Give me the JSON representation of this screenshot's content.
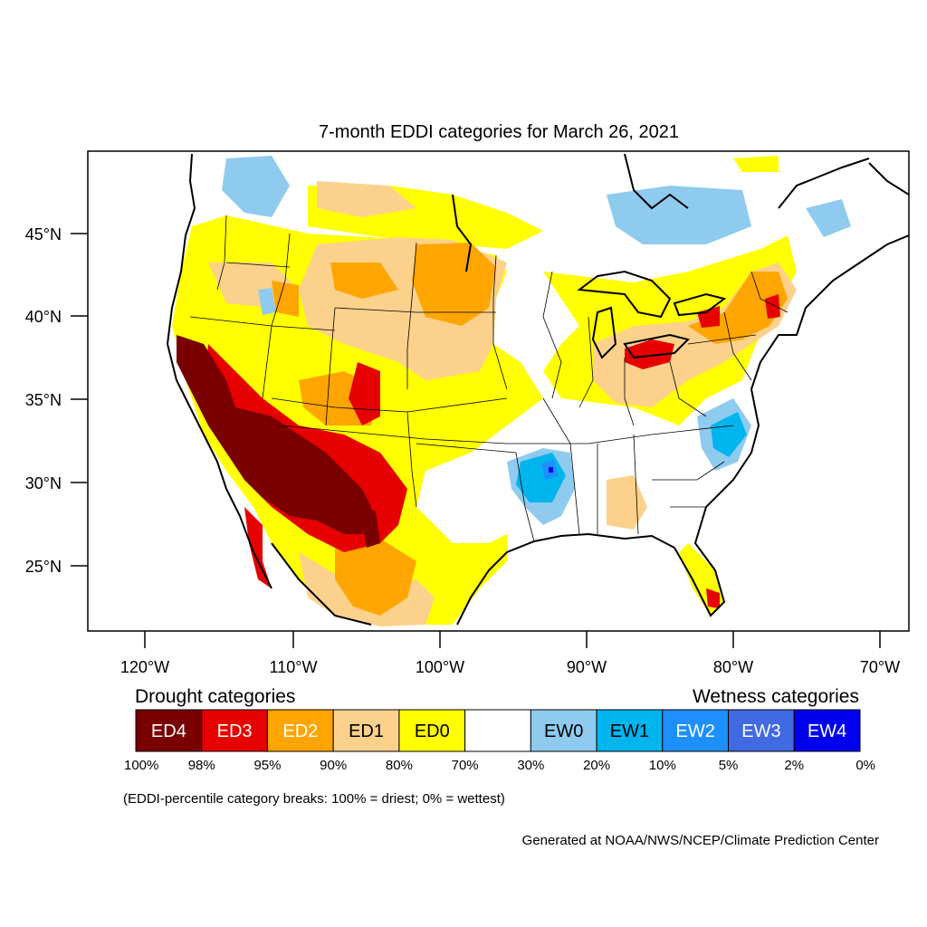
{
  "title": "7-month EDDI categories for March 26, 2021",
  "lat_labels": [
    "45°N",
    "40°N",
    "35°N",
    "30°N",
    "25°N"
  ],
  "lon_labels": [
    "120°W",
    "110°W",
    "100°W",
    "90°W",
    "80°W",
    "70°W"
  ],
  "legend": {
    "drought_heading": "Drought categories",
    "wetness_heading": "Wetness categories",
    "categories": [
      {
        "label": "ED4",
        "color": "#7a0000",
        "text_color": "#ffffff"
      },
      {
        "label": "ED3",
        "color": "#e60000",
        "text_color": "#ffffff"
      },
      {
        "label": "ED2",
        "color": "#ffa500",
        "text_color": "#ffffff"
      },
      {
        "label": "ED1",
        "color": "#fcd18b",
        "text_color": "#000000"
      },
      {
        "label": "ED0",
        "color": "#ffff00",
        "text_color": "#000000"
      },
      {
        "label": "",
        "color": "#ffffff",
        "text_color": "#000000"
      },
      {
        "label": "EW0",
        "color": "#8ecbee",
        "text_color": "#000000"
      },
      {
        "label": "EW1",
        "color": "#00b4ee",
        "text_color": "#000000"
      },
      {
        "label": "EW2",
        "color": "#1e8fff",
        "text_color": "#ffffff"
      },
      {
        "label": "EW3",
        "color": "#4169e1",
        "text_color": "#ffffff"
      },
      {
        "label": "EW4",
        "color": "#0000ee",
        "text_color": "#ffffff"
      }
    ],
    "breaks": [
      "100%",
      "98%",
      "95%",
      "90%",
      "80%",
      "70%",
      "30%",
      "20%",
      "10%",
      "5%",
      "2%",
      "0%"
    ],
    "note": "(EDDI-percentile category breaks: 100% = driest; 0% = wettest)"
  },
  "credit": "Generated at NOAA/NWS/NCEP/Climate Prediction Center"
}
